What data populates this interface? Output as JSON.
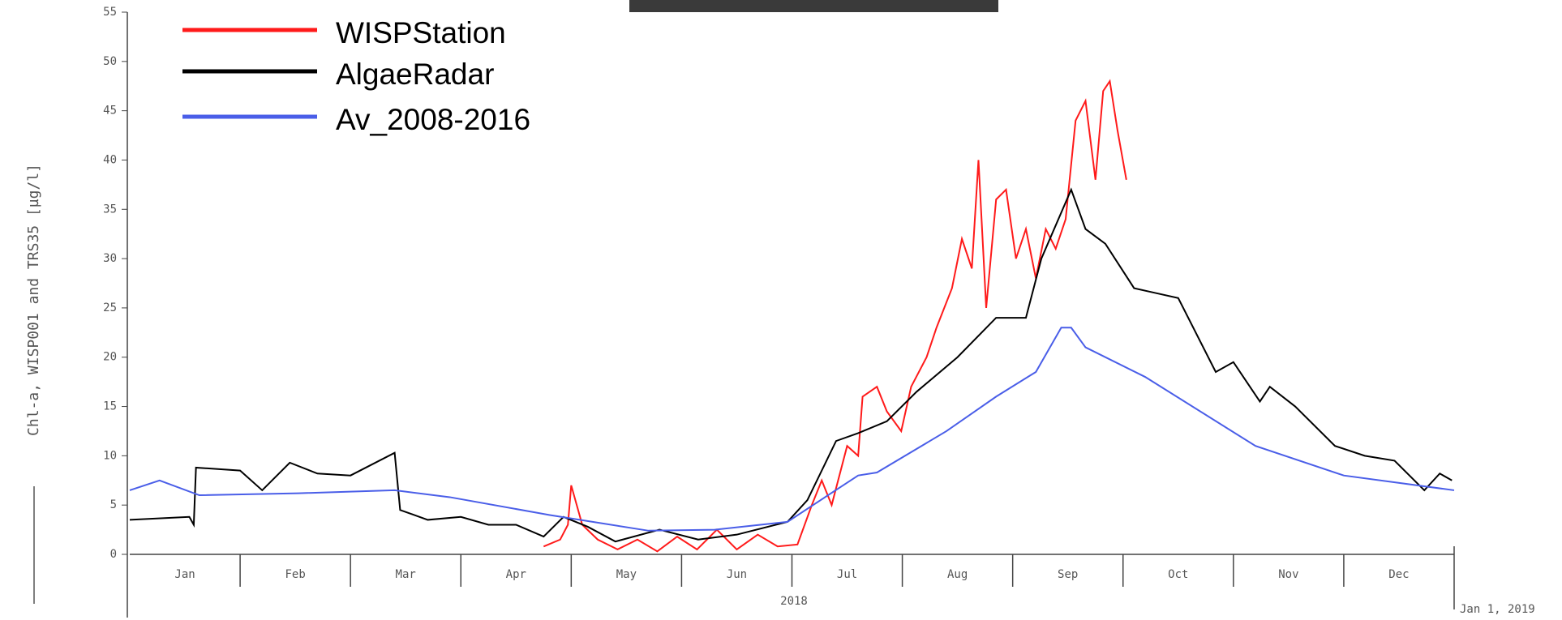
{
  "chart_data": {
    "type": "line",
    "y_label": "Chl-a, WISP001 and TRS35 [µg/l]",
    "x_label": "2018",
    "end_label": "Jan 1, 2019",
    "categories": [
      "Jan",
      "Feb",
      "Mar",
      "Apr",
      "May",
      "Jun",
      "Jul",
      "Aug",
      "Sep",
      "Oct",
      "Nov",
      "Dec"
    ],
    "xlim": [
      0,
      12
    ],
    "ylim": [
      0,
      55
    ],
    "yticks": [
      0,
      5,
      10,
      15,
      20,
      25,
      30,
      35,
      40,
      45,
      50,
      55
    ],
    "series": [
      {
        "name": "WISPStation",
        "color": "#ff1a1a",
        "x": [
          3.75,
          3.9,
          3.97,
          4.0,
          4.1,
          4.24,
          4.42,
          4.6,
          4.78,
          4.96,
          5.14,
          5.32,
          5.5,
          5.69,
          5.87,
          6.05,
          6.18,
          6.27,
          6.36,
          6.5,
          6.6,
          6.64,
          6.77,
          6.86,
          6.99,
          7.08,
          7.22,
          7.31,
          7.45,
          7.54,
          7.63,
          7.69,
          7.76,
          7.85,
          7.94,
          8.03,
          8.12,
          8.21,
          8.3,
          8.39,
          8.48,
          8.57,
          8.66,
          8.75,
          8.82,
          8.88,
          8.95,
          9.03
        ],
        "values": [
          0.8,
          1.5,
          3,
          7,
          3,
          1.5,
          0.5,
          1.5,
          0.3,
          1.8,
          0.5,
          2.5,
          0.5,
          2,
          0.8,
          1,
          5,
          7.5,
          5,
          11,
          10,
          16,
          17,
          14.5,
          12.5,
          17,
          20,
          23,
          27,
          32,
          29,
          40,
          25,
          36,
          37,
          30,
          33,
          28,
          33,
          31,
          34,
          44,
          46,
          38,
          47,
          48,
          43,
          38
        ]
      },
      {
        "name": "AlgaeRadar",
        "color": "#000000",
        "x": [
          0,
          0.54,
          0.58,
          0.6,
          1.0,
          1.2,
          1.45,
          1.7,
          2.0,
          2.4,
          2.45,
          2.7,
          3.0,
          3.25,
          3.5,
          3.75,
          3.93,
          4.15,
          4.4,
          4.8,
          5.15,
          5.5,
          5.96,
          6.14,
          6.4,
          6.6,
          6.86,
          7.13,
          7.5,
          7.85,
          8.12,
          8.26,
          8.53,
          8.66,
          8.84,
          9.1,
          9.3,
          9.5,
          9.84,
          10.0,
          10.24,
          10.33,
          10.56,
          10.92,
          11.19,
          11.46,
          11.73,
          11.87,
          11.98
        ],
        "values": [
          3.5,
          3.8,
          3,
          8.8,
          8.5,
          6.5,
          9.3,
          8.2,
          8,
          10.3,
          4.5,
          3.5,
          3.8,
          3,
          3,
          1.8,
          3.8,
          2.8,
          1.3,
          2.5,
          1.5,
          2,
          3.3,
          5.5,
          11.5,
          12.3,
          13.5,
          16.5,
          20,
          24,
          24,
          30,
          37,
          33,
          31.5,
          27,
          26.5,
          26,
          18.5,
          19.5,
          15.5,
          17,
          15,
          11,
          10,
          9.5,
          6.5,
          8.2,
          7.5
        ]
      },
      {
        "name": "Av_2008-2016",
        "color": "#4a5ee8",
        "x": [
          0,
          0.27,
          0.63,
          1.53,
          2.4,
          2.9,
          3.8,
          4.7,
          5.3,
          5.96,
          6.6,
          6.77,
          7.4,
          7.85,
          8.21,
          8.44,
          8.53,
          8.66,
          9.2,
          10.2,
          11.0,
          12.0
        ],
        "values": [
          6.5,
          7.5,
          6,
          6.2,
          6.5,
          5.8,
          4,
          2.4,
          2.5,
          3.3,
          8,
          8.3,
          12.5,
          16,
          18.5,
          23,
          23,
          21,
          18,
          11,
          8,
          6.5
        ]
      }
    ]
  }
}
